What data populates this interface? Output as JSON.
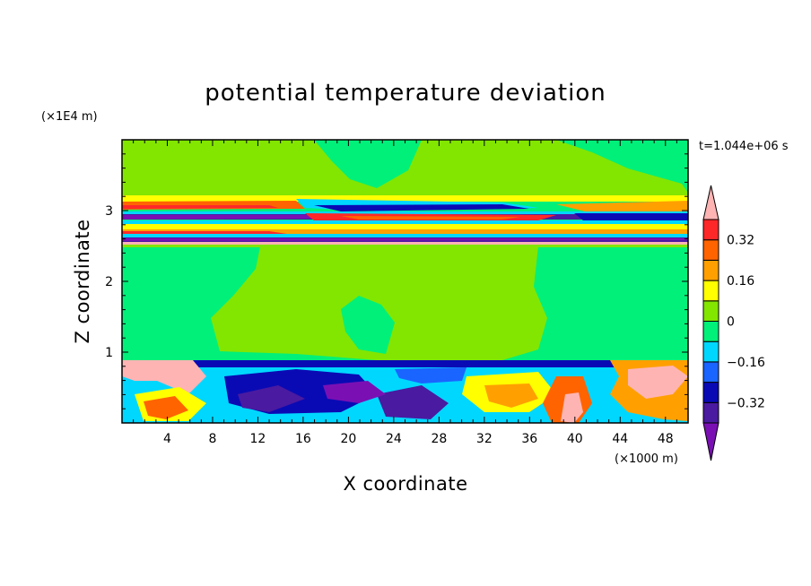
{
  "chart_data": {
    "type": "heatmap",
    "title": "potential temperature deviation",
    "xlabel": "X coordinate",
    "ylabel": "Z coordinate",
    "x_unit": "(×1000 m)",
    "y_unit": "(×1E4 m)",
    "time_label": "t=1.044e+06 s",
    "xlim": [
      0,
      50
    ],
    "ylim": [
      0,
      4
    ],
    "x_ticks": [
      4,
      8,
      12,
      16,
      20,
      24,
      28,
      32,
      36,
      40,
      44,
      48
    ],
    "y_ticks": [
      1,
      2,
      3
    ],
    "colorbar": {
      "levels": [
        -0.4,
        -0.32,
        -0.24,
        -0.16,
        -0.08,
        0,
        0.08,
        0.16,
        0.24,
        0.32,
        0.4
      ],
      "tick_labels": [
        "0.32",
        "0.16",
        "0",
        "−0.16",
        "−0.32"
      ],
      "tick_values": [
        0.32,
        0.16,
        0,
        -0.16,
        -0.32
      ],
      "colors": [
        "#7a10b4",
        "#4a1aa0",
        "#0a0ab4",
        "#1a64ff",
        "#00d7ff",
        "#00f07a",
        "#82e600",
        "#ffff00",
        "#ffa000",
        "#ff6400",
        "#ff2828",
        "#ffb4b4"
      ],
      "extend": "both"
    },
    "grid": false
  }
}
